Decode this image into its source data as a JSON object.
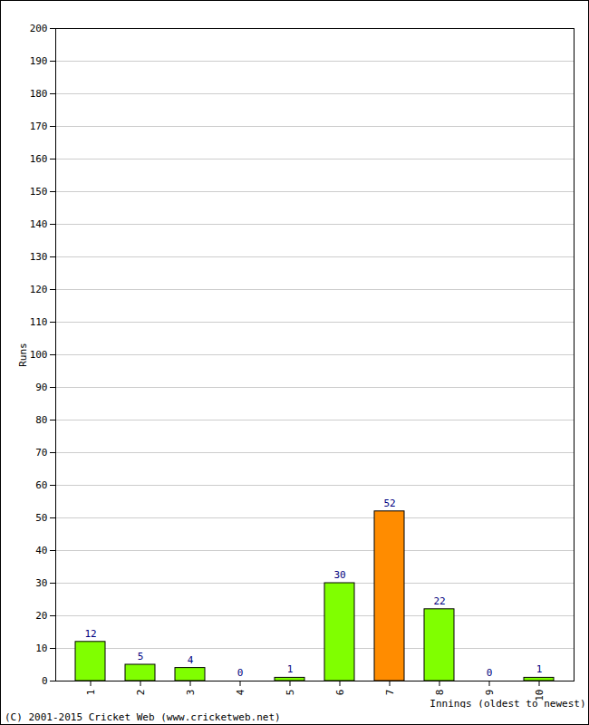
{
  "chart_data": {
    "type": "bar",
    "caption": "(C) 2001-2015 Cricket Web (www.cricketweb.net)",
    "x_label": "Innings (oldest to newest)",
    "y_label": "Runs",
    "categories": [
      "1",
      "2",
      "3",
      "4",
      "5",
      "6",
      "7",
      "8",
      "9",
      "10"
    ],
    "values": [
      12,
      5,
      4,
      0,
      1,
      30,
      52,
      22,
      0,
      1
    ],
    "colors": [
      "#80ff00",
      "#80ff00",
      "#80ff00",
      "#80ff00",
      "#80ff00",
      "#80ff00",
      "#ff8c00",
      "#80ff00",
      "#80ff00",
      "#80ff00"
    ],
    "ylim": [
      0,
      200
    ],
    "yticks": [
      0,
      10,
      20,
      30,
      40,
      50,
      60,
      70,
      80,
      90,
      100,
      110,
      120,
      130,
      140,
      150,
      160,
      170,
      180,
      190,
      200
    ],
    "grid": true,
    "data_labels": true
  }
}
